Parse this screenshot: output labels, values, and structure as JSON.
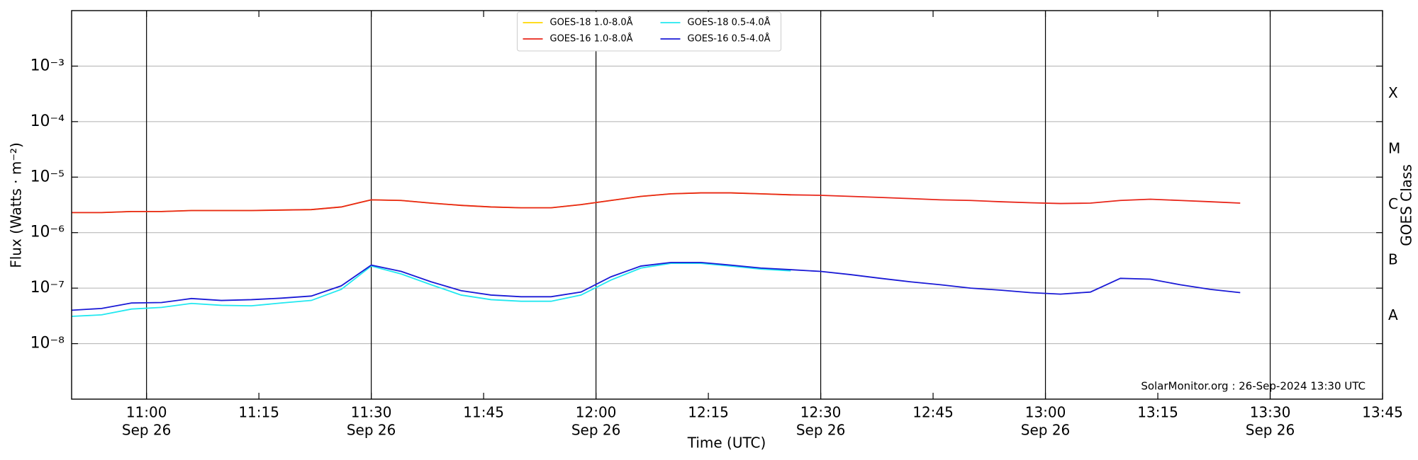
{
  "chart_data": {
    "type": "line",
    "xlabel": "Time (UTC)",
    "ylabel": "Flux (Watts · m⁻²)",
    "y2label": "GOES Class",
    "annotation": "SolarMonitor.org : 26-Sep-2024 13:30 UTC",
    "x": [
      "10:50",
      "10:54",
      "10:58",
      "11:02",
      "11:06",
      "11:10",
      "11:14",
      "11:18",
      "11:22",
      "11:26",
      "11:30",
      "11:34",
      "11:38",
      "11:42",
      "11:46",
      "11:50",
      "11:54",
      "11:58",
      "12:02",
      "12:06",
      "12:10",
      "12:14",
      "12:18",
      "12:22",
      "12:26",
      "12:30",
      "12:34",
      "12:38",
      "12:42",
      "12:46",
      "12:50",
      "12:54",
      "12:58",
      "13:02",
      "13:06",
      "13:10",
      "13:14",
      "13:18",
      "13:22",
      "13:26"
    ],
    "xlim": [
      "10:50",
      "13:45"
    ],
    "xticks": [
      "11:00",
      "11:15",
      "11:30",
      "11:45",
      "12:00",
      "12:15",
      "12:30",
      "12:45",
      "13:00",
      "13:15",
      "13:30",
      "13:45"
    ],
    "xtick_dates": [
      "Sep 26",
      null,
      "Sep 26",
      null,
      "Sep 26",
      null,
      "Sep 26",
      null,
      "Sep 26",
      null,
      "Sep 26",
      null
    ],
    "ylim": [
      1e-09,
      0.01
    ],
    "log_y": true,
    "grid": true,
    "yticks": [
      {
        "value": 1e-08,
        "label": "10⁻⁸"
      },
      {
        "value": 1e-07,
        "label": "10⁻⁷"
      },
      {
        "value": 1e-06,
        "label": "10⁻⁶"
      },
      {
        "value": 1e-05,
        "label": "10⁻⁵"
      },
      {
        "value": 0.0001,
        "label": "10⁻⁴"
      },
      {
        "value": 0.001,
        "label": "10⁻³"
      }
    ],
    "y2lim": [
      1e-09,
      0.01
    ],
    "y2ticks": [
      {
        "value": 3.16e-08,
        "label": "A"
      },
      {
        "value": 3.16e-07,
        "label": "B"
      },
      {
        "value": 3.16e-06,
        "label": "C"
      },
      {
        "value": 3.16e-05,
        "label": "M"
      },
      {
        "value": 0.000316,
        "label": "X"
      }
    ],
    "legend": "upper center",
    "series": [
      {
        "name": "GOES-18 1.0-8.0Å",
        "color": "#ffd700",
        "values": [
          2.3e-06,
          2.3e-06,
          2.4e-06,
          2.4e-06,
          2.5e-06,
          2.5e-06,
          2.5e-06,
          2.55e-06,
          2.6e-06,
          2.9e-06,
          3.9e-06,
          3.8e-06,
          3.4e-06,
          3.1e-06,
          2.9e-06,
          2.8e-06,
          2.8e-06,
          3.2e-06,
          3.8e-06,
          4.5e-06,
          5e-06,
          5.2e-06,
          5.2e-06,
          5e-06,
          4.8e-06,
          null,
          null,
          null,
          null,
          null,
          null,
          null,
          null,
          null,
          null,
          null,
          null,
          null,
          null,
          null
        ]
      },
      {
        "name": "GOES-16 1.0-8.0Å",
        "color": "#e8261a",
        "values": [
          2.3e-06,
          2.3e-06,
          2.4e-06,
          2.4e-06,
          2.5e-06,
          2.5e-06,
          2.5e-06,
          2.55e-06,
          2.6e-06,
          2.9e-06,
          3.9e-06,
          3.8e-06,
          3.4e-06,
          3.1e-06,
          2.9e-06,
          2.8e-06,
          2.8e-06,
          3.2e-06,
          3.8e-06,
          4.5e-06,
          5e-06,
          5.2e-06,
          5.2e-06,
          5e-06,
          4.8e-06,
          4.7e-06,
          4.5e-06,
          4.3e-06,
          4.1e-06,
          3.9e-06,
          3.8e-06,
          3.6e-06,
          3.45e-06,
          3.35e-06,
          3.4e-06,
          3.8e-06,
          4e-06,
          3.8e-06,
          3.6e-06,
          3.4e-06
        ]
      },
      {
        "name": "GOES-18 0.5-4.0Å",
        "color": "#22e8f0",
        "values": [
          3.1e-08,
          3.3e-08,
          4.2e-08,
          4.5e-08,
          5.3e-08,
          4.9e-08,
          4.8e-08,
          5.4e-08,
          6e-08,
          9.5e-08,
          2.5e-07,
          1.8e-07,
          1.15e-07,
          7.5e-08,
          6.2e-08,
          5.8e-08,
          5.8e-08,
          7.5e-08,
          1.4e-07,
          2.3e-07,
          2.8e-07,
          2.8e-07,
          2.5e-07,
          2.2e-07,
          2.05e-07,
          null,
          null,
          null,
          null,
          null,
          null,
          null,
          null,
          null,
          null,
          null,
          null,
          null,
          null,
          null
        ]
      },
      {
        "name": "GOES-16 0.5-4.0Å",
        "color": "#1a1ad6",
        "values": [
          4e-08,
          4.3e-08,
          5.4e-08,
          5.5e-08,
          6.5e-08,
          6e-08,
          6.2e-08,
          6.6e-08,
          7.2e-08,
          1.1e-07,
          2.6e-07,
          2e-07,
          1.3e-07,
          9e-08,
          7.5e-08,
          7e-08,
          7e-08,
          8.5e-08,
          1.6e-07,
          2.5e-07,
          2.9e-07,
          2.9e-07,
          2.6e-07,
          2.3e-07,
          2.15e-07,
          2e-07,
          1.75e-07,
          1.5e-07,
          1.3e-07,
          1.15e-07,
          1e-07,
          9.2e-08,
          8.3e-08,
          7.8e-08,
          8.5e-08,
          1.5e-07,
          1.45e-07,
          1.15e-07,
          9.5e-08,
          8.3e-08
        ]
      }
    ]
  }
}
